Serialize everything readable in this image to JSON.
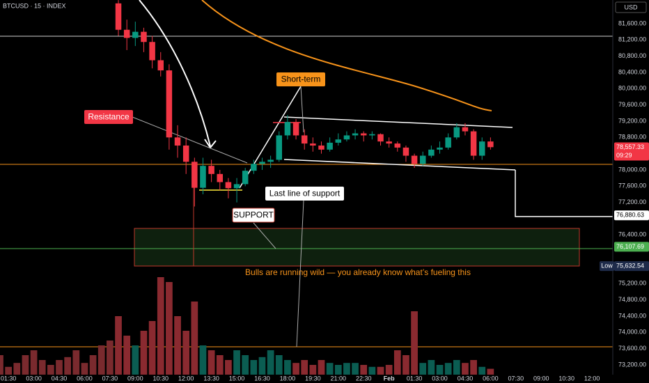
{
  "header": {
    "symbol": "BTCUSD · 15 · INDEX",
    "currency": "USD"
  },
  "chart_data": {
    "type": "candlestick",
    "x": [
      8.0,
      8.5,
      9.0,
      9.5,
      10.0,
      10.5,
      11.0,
      11.5,
      12.0,
      12.5,
      13.0,
      13.5,
      14.0,
      14.5,
      15.0,
      15.5,
      16.0,
      16.5,
      17.0,
      17.5,
      18.0,
      18.5,
      19.0,
      19.5,
      20.0,
      20.5,
      21.0,
      21.5,
      22.0,
      22.5,
      23.0,
      23.5,
      24.0,
      24.5,
      25.0,
      25.5,
      26.0,
      26.5,
      27.0,
      27.5,
      28.0,
      28.5,
      29.0,
      29.5,
      30.0
    ],
    "open": [
      82100,
      81450,
      81250,
      81400,
      81150,
      80700,
      80450,
      78800,
      78600,
      78200,
      77560,
      78100,
      77900,
      77700,
      77550,
      77650,
      77980,
      78150,
      78200,
      78250,
      78850,
      79180,
      78850,
      78650,
      78600,
      78500,
      78670,
      78750,
      78850,
      78900,
      78850,
      78880,
      78700,
      78650,
      78550,
      78350,
      78150,
      78350,
      78500,
      78550,
      78800,
      79050,
      78950,
      78350,
      78700
    ],
    "high": [
      82180,
      81700,
      81650,
      81500,
      81300,
      80900,
      80600,
      79100,
      78800,
      78300,
      78300,
      78250,
      78000,
      77800,
      77800,
      78050,
      78250,
      78300,
      78350,
      78950,
      79350,
      79250,
      79000,
      78800,
      78700,
      78800,
      78900,
      78950,
      79000,
      78950,
      78950,
      78900,
      78800,
      78700,
      78600,
      78400,
      78450,
      78600,
      78700,
      78900,
      79150,
      79150,
      79000,
      78800,
      78800
    ],
    "low": [
      81300,
      80950,
      81050,
      80900,
      80500,
      80300,
      78500,
      78300,
      77900,
      77100,
      77400,
      77700,
      77500,
      77300,
      77200,
      77600,
      77900,
      78000,
      78050,
      78200,
      78750,
      78750,
      78500,
      78450,
      78400,
      78450,
      78600,
      78700,
      78750,
      78700,
      78750,
      78600,
      78550,
      78450,
      78200,
      78050,
      78100,
      78300,
      78400,
      78500,
      78750,
      78850,
      78250,
      78250,
      78500
    ],
    "close": [
      81450,
      81250,
      81400,
      81150,
      80700,
      80450,
      78800,
      78600,
      78200,
      77560,
      78100,
      77900,
      77700,
      77550,
      77650,
      77980,
      78150,
      78200,
      78250,
      78850,
      79180,
      78850,
      78650,
      78600,
      78500,
      78670,
      78750,
      78850,
      78900,
      78850,
      78880,
      78700,
      78650,
      78550,
      78350,
      78150,
      78350,
      78500,
      78550,
      78800,
      79050,
      78950,
      78350,
      78700,
      78560
    ],
    "up_color": "#089981",
    "down_color": "#f23645",
    "volume": {
      "x": [
        1.0,
        1.5,
        2.0,
        2.5,
        3.0,
        3.5,
        4.0,
        4.5,
        5.0,
        5.5,
        6.0,
        6.5,
        7.0,
        7.5,
        8.0,
        8.5,
        9.0,
        9.5,
        10.0,
        10.5,
        11.0,
        11.5,
        12.0,
        12.5,
        13.0,
        13.5,
        14.0,
        14.5,
        15.0,
        15.5,
        16.0,
        16.5,
        17.0,
        17.5,
        18.0,
        18.5,
        19.0,
        19.5,
        20.0,
        20.5,
        21.0,
        21.5,
        22.0,
        22.5,
        23.0,
        23.5,
        24.0,
        24.5,
        25.0,
        25.5,
        26.0,
        26.5,
        27.0,
        27.5,
        28.0,
        28.5,
        29.0,
        29.5,
        30.0
      ],
      "values": [
        20,
        8,
        12,
        20,
        25,
        15,
        10,
        15,
        18,
        25,
        12,
        20,
        30,
        35,
        60,
        40,
        30,
        45,
        55,
        100,
        95,
        60,
        45,
        75,
        30,
        25,
        20,
        15,
        25,
        20,
        15,
        18,
        25,
        20,
        15,
        12,
        15,
        10,
        15,
        12,
        10,
        12,
        12,
        10,
        8,
        8,
        10,
        25,
        20,
        65,
        12,
        15,
        10,
        12,
        15,
        12,
        15,
        8,
        6
      ],
      "color": "#7a2a2e"
    },
    "xlim": [
      1.0,
      37.23
    ],
    "xticks": [
      {
        "value": 1.5,
        "label": "01:30"
      },
      {
        "value": 3,
        "label": "03:00"
      },
      {
        "value": 4.5,
        "label": "04:30"
      },
      {
        "value": 6,
        "label": "06:00"
      },
      {
        "value": 7.5,
        "label": "07:30"
      },
      {
        "value": 9,
        "label": "09:00"
      },
      {
        "value": 10.5,
        "label": "10:30"
      },
      {
        "value": 12,
        "label": "12:00"
      },
      {
        "value": 13.5,
        "label": "13:30"
      },
      {
        "value": 15,
        "label": "15:00"
      },
      {
        "value": 16.5,
        "label": "16:30"
      },
      {
        "value": 18,
        "label": "18:00"
      },
      {
        "value": 19.5,
        "label": "19:30"
      },
      {
        "value": 21,
        "label": "21:00"
      },
      {
        "value": 22.5,
        "label": "22:30"
      },
      {
        "value": 24,
        "label": "Feb"
      },
      {
        "value": 25.5,
        "label": "01:30"
      },
      {
        "value": 27,
        "label": "03:00"
      },
      {
        "value": 28.5,
        "label": "04:30"
      },
      {
        "value": 30,
        "label": "06:00"
      },
      {
        "value": 31.5,
        "label": "07:30"
      },
      {
        "value": 33,
        "label": "09:00"
      },
      {
        "value": 34.5,
        "label": "10:30"
      },
      {
        "value": 36,
        "label": "12:00"
      }
    ],
    "ylim": [
      72960,
      82183
    ],
    "yticks": [
      {
        "value": 81600,
        "label": "81,600.00"
      },
      {
        "value": 81200,
        "label": "81,200.00"
      },
      {
        "value": 80800,
        "label": "80,800.00"
      },
      {
        "value": 80400,
        "label": "80,400.00"
      },
      {
        "value": 80000,
        "label": "80,000.00"
      },
      {
        "value": 79600,
        "label": "79,600.00"
      },
      {
        "value": 79200,
        "label": "79,200.00"
      },
      {
        "value": 78800,
        "label": "78,800.00"
      },
      {
        "value": 78000,
        "label": "78,000.00"
      },
      {
        "value": 77600,
        "label": "77,600.00"
      },
      {
        "value": 77200,
        "label": "77,200.00"
      },
      {
        "value": 76400,
        "label": "76,400.00"
      },
      {
        "value": 75200,
        "label": "75,200.00"
      },
      {
        "value": 74800,
        "label": "74,800.00"
      },
      {
        "value": 74400,
        "label": "74,400.00"
      },
      {
        "value": 74000,
        "label": "74,000.00"
      },
      {
        "value": 73600,
        "label": "73,600.00"
      },
      {
        "value": 73200,
        "label": "73,200.00"
      }
    ],
    "price_tags": [
      {
        "value": 78557.33,
        "label": "78,557.33",
        "sub": "09:29",
        "color": "#f23645",
        "text_color": "#ffffff"
      },
      {
        "value": 76880.63,
        "label": "76,880.63",
        "color": "#ffffff",
        "text_color": "#000000"
      },
      {
        "value": 76107.69,
        "label": "76,107.69",
        "color": "#4caf50",
        "text_color": "#ffffff"
      },
      {
        "value": 75632.54,
        "label": "75,632.54",
        "prefix": "Low",
        "color": "#1e2b4a",
        "text_color": "#ffffff"
      }
    ],
    "annotations": {
      "resistance": "Resistance",
      "short_term": "Short-term",
      "last_support": "Last line of support",
      "support": "SUPPORT",
      "caption": "Bulls are running wild — you already know what’s fueling this"
    }
  }
}
